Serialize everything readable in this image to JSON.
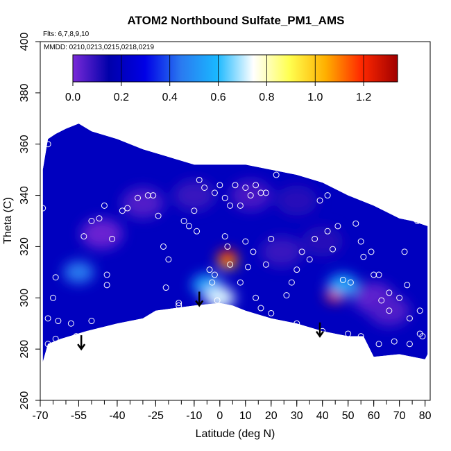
{
  "chart_data": {
    "type": "heatmap",
    "title": "ATOM2 Northbound Sulfate_PM1_AMS",
    "flights_note": "Flts: 6,7,8,9,10",
    "dates_note": "MMDD: 0210,0213,0215,0218,0219",
    "xlabel": "Latitude (deg N)",
    "ylabel": "Theta (C)",
    "xlim": [
      -70,
      82
    ],
    "ylim": [
      260,
      400
    ],
    "x_ticks": [
      -70,
      -55,
      -40,
      -25,
      -10,
      0,
      10,
      20,
      30,
      40,
      50,
      60,
      70,
      80
    ],
    "y_ticks": [
      260,
      280,
      300,
      320,
      340,
      360,
      380,
      400
    ],
    "colorbar": {
      "range": [
        0,
        1.34
      ],
      "ticks": [
        0.0,
        0.2,
        0.4,
        0.6,
        0.8,
        1.0,
        1.2
      ],
      "tick_labels": [
        "0.0",
        "0.2",
        "0.4",
        "0.6",
        "0.8",
        "1.0",
        "1.2"
      ],
      "colors": [
        "#7a2ad8",
        "#0000aa",
        "#0000e6",
        "#2a7af0",
        "#1ab8ff",
        "#ffffff",
        "#ffff50",
        "#ffb000",
        "#ff2800",
        "#a00000"
      ]
    },
    "field_boundary": [
      [
        -69,
        275
      ],
      [
        -67,
        282
      ],
      [
        -62,
        284
      ],
      [
        -52,
        287
      ],
      [
        -40,
        290
      ],
      [
        -30,
        292
      ],
      [
        -25,
        295
      ],
      [
        -10,
        297
      ],
      [
        0,
        298
      ],
      [
        5,
        297
      ],
      [
        10,
        295
      ],
      [
        20,
        292
      ],
      [
        30,
        290
      ],
      [
        40,
        287
      ],
      [
        50,
        285
      ],
      [
        56,
        285
      ],
      [
        60,
        277
      ],
      [
        70,
        278
      ],
      [
        80,
        276
      ],
      [
        81,
        278
      ],
      [
        81,
        328
      ],
      [
        75,
        330
      ],
      [
        70,
        331
      ],
      [
        60,
        336
      ],
      [
        50,
        340
      ],
      [
        40,
        345
      ],
      [
        30,
        348
      ],
      [
        20,
        350
      ],
      [
        10,
        352
      ],
      [
        0,
        352
      ],
      [
        -10,
        352
      ],
      [
        -20,
        355
      ],
      [
        -30,
        358
      ],
      [
        -40,
        362
      ],
      [
        -50,
        365
      ],
      [
        -55,
        368
      ],
      [
        -60,
        366
      ],
      [
        -64,
        364
      ],
      [
        -67,
        362
      ],
      [
        -69,
        350
      ]
    ],
    "background_value": 0.2,
    "features": [
      {
        "lat": -46,
        "theta": 325,
        "value": 0.02
      },
      {
        "lat": -30,
        "theta": 337,
        "value": 0.05
      },
      {
        "lat": -10,
        "theta": 340,
        "value": 0.08
      },
      {
        "lat": 12,
        "theta": 340,
        "value": 0.06
      },
      {
        "lat": 30,
        "theta": 338,
        "value": 0.1
      },
      {
        "lat": 60,
        "theta": 300,
        "value": 0.03
      },
      {
        "lat": 66,
        "theta": 295,
        "value": 0.05
      },
      {
        "lat": 24,
        "theta": 318,
        "value": 0.08
      },
      {
        "lat": 40,
        "theta": 322,
        "value": 0.1
      },
      {
        "lat": -55,
        "theta": 310,
        "value": 0.45
      },
      {
        "lat": -5,
        "theta": 305,
        "value": 0.55
      },
      {
        "lat": 0,
        "theta": 300,
        "value": 0.72
      },
      {
        "lat": 3,
        "theta": 314,
        "value": 1.0
      },
      {
        "lat": 3,
        "theta": 316,
        "value": 1.18
      },
      {
        "lat": 45,
        "theta": 301,
        "value": 1.2
      },
      {
        "lat": 48,
        "theta": 305,
        "value": 0.55
      }
    ],
    "observations": [
      [
        -69,
        335
      ],
      [
        -67,
        360
      ],
      [
        -65,
        300
      ],
      [
        -64,
        308
      ],
      [
        -67,
        292
      ],
      [
        -63,
        291
      ],
      [
        -60,
        283
      ],
      [
        -58,
        290
      ],
      [
        -50,
        330
      ],
      [
        -47,
        331
      ],
      [
        -53,
        324
      ],
      [
        -45,
        336
      ],
      [
        -44,
        305
      ],
      [
        -44,
        309
      ],
      [
        -42,
        323
      ],
      [
        -38,
        334
      ],
      [
        -36,
        335
      ],
      [
        -32,
        339
      ],
      [
        -28,
        340
      ],
      [
        -26,
        340
      ],
      [
        -24,
        332
      ],
      [
        -22,
        320
      ],
      [
        -20,
        315
      ],
      [
        -21,
        304
      ],
      [
        -16,
        297
      ],
      [
        -16,
        298
      ],
      [
        -14,
        330
      ],
      [
        -12,
        328
      ],
      [
        -10,
        334
      ],
      [
        -9,
        326
      ],
      [
        -8,
        346
      ],
      [
        -6,
        343
      ],
      [
        -2,
        341
      ],
      [
        0,
        344
      ],
      [
        2,
        339
      ],
      [
        4,
        336
      ],
      [
        6,
        344
      ],
      [
        8,
        336
      ],
      [
        10,
        343
      ],
      [
        12,
        340
      ],
      [
        14,
        344
      ],
      [
        16,
        341
      ],
      [
        18,
        341
      ],
      [
        22,
        348
      ],
      [
        -4,
        311
      ],
      [
        -2,
        309
      ],
      [
        -3,
        306
      ],
      [
        4,
        313
      ],
      [
        8,
        306
      ],
      [
        2,
        324
      ],
      [
        3,
        320
      ],
      [
        10,
        322
      ],
      [
        11,
        312
      ],
      [
        13,
        318
      ],
      [
        14,
        300
      ],
      [
        16,
        296
      ],
      [
        18,
        313
      ],
      [
        20,
        323
      ],
      [
        26,
        301
      ],
      [
        28,
        306
      ],
      [
        30,
        311
      ],
      [
        32,
        318
      ],
      [
        35,
        315
      ],
      [
        37,
        323
      ],
      [
        39,
        338
      ],
      [
        42,
        340
      ],
      [
        42,
        326
      ],
      [
        44,
        319
      ],
      [
        46,
        328
      ],
      [
        48,
        307
      ],
      [
        51,
        306
      ],
      [
        53,
        329
      ],
      [
        55,
        322
      ],
      [
        56,
        316
      ],
      [
        59,
        318
      ],
      [
        60,
        309
      ],
      [
        62,
        309
      ],
      [
        63,
        299
      ],
      [
        66,
        302
      ],
      [
        66,
        295
      ],
      [
        70,
        300
      ],
      [
        72,
        318
      ],
      [
        73,
        305
      ],
      [
        74,
        292
      ],
      [
        77,
        330
      ],
      [
        78,
        295
      ],
      [
        79,
        285
      ],
      [
        80,
        271
      ],
      [
        -56,
        285
      ],
      [
        -50,
        291
      ],
      [
        -42,
        283
      ],
      [
        -3,
        296
      ],
      [
        -1,
        299
      ],
      [
        20,
        294
      ],
      [
        30,
        290
      ],
      [
        40,
        287
      ],
      [
        50,
        286
      ],
      [
        55,
        285
      ],
      [
        62,
        282
      ],
      [
        68,
        283
      ],
      [
        74,
        282
      ],
      [
        78,
        286
      ],
      [
        -67,
        282
      ],
      [
        -64,
        284
      ]
    ],
    "arrows": [
      [
        -54,
        280
      ],
      [
        -8,
        297
      ],
      [
        39,
        285
      ]
    ]
  }
}
